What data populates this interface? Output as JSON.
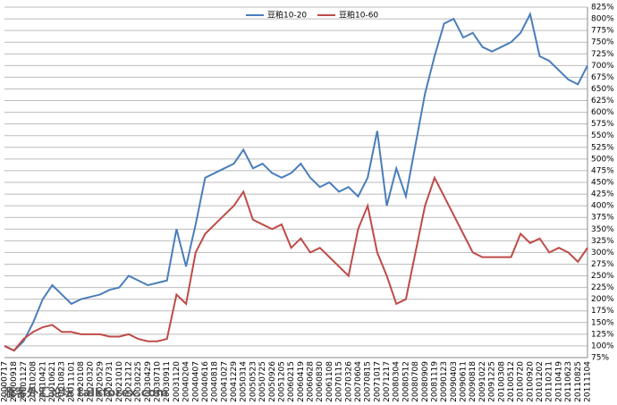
{
  "chart_data": {
    "type": "line",
    "categories": [
      "20000717",
      "20000918",
      "20001127",
      "20010208",
      "20010421",
      "20010621",
      "20010823",
      "20011101",
      "20020108",
      "20020320",
      "20020529",
      "20020731",
      "20021010",
      "20021212",
      "20030225",
      "20030429",
      "20030710",
      "20030911",
      "20031120",
      "20040204",
      "20040407",
      "20040616",
      "20040818",
      "20041027",
      "20041229",
      "20050314",
      "20050523",
      "20050725",
      "20050926",
      "20051205",
      "20060215",
      "20060419",
      "20060628",
      "20060830",
      "20061108",
      "20070115",
      "20070326",
      "20070604",
      "20070815",
      "20071017",
      "20071217",
      "20080304",
      "20080512",
      "20080708",
      "20080909",
      "20081119",
      "20090123",
      "20090403",
      "20090611",
      "20090818",
      "20091022",
      "20091225",
      "20100308",
      "20100512",
      "20100720",
      "20100920",
      "20101202",
      "20110211",
      "20110419",
      "20110623",
      "20110825",
      "20111104"
    ],
    "series": [
      {
        "name": "豆粕10-20",
        "color": "#4a7ebb",
        "values": [
          100,
          90,
          110,
          150,
          200,
          230,
          210,
          190,
          200,
          205,
          210,
          220,
          225,
          250,
          240,
          230,
          235,
          240,
          350,
          270,
          360,
          460,
          470,
          480,
          490,
          520,
          480,
          490,
          470,
          460,
          470,
          490,
          460,
          440,
          450,
          430,
          440,
          420,
          460,
          560,
          400,
          480,
          420,
          530,
          640,
          720,
          790,
          800,
          760,
          770,
          740,
          730,
          740,
          750,
          770,
          810,
          720,
          710,
          690,
          670,
          660,
          700
        ]
      },
      {
        "name": "豆粕10-60",
        "color": "#be4b48",
        "values": [
          100,
          90,
          115,
          130,
          140,
          145,
          130,
          130,
          125,
          125,
          125,
          120,
          120,
          125,
          115,
          110,
          110,
          115,
          210,
          190,
          300,
          340,
          360,
          380,
          400,
          430,
          370,
          360,
          350,
          360,
          310,
          330,
          300,
          310,
          290,
          270,
          250,
          350,
          400,
          300,
          250,
          190,
          200,
          300,
          400,
          460,
          420,
          380,
          340,
          300,
          290,
          290,
          290,
          290,
          340,
          320,
          330,
          300,
          310,
          300,
          280,
          310
        ]
      }
    ],
    "ylim": [
      75,
      825
    ],
    "yticks": [
      {
        "value": 75,
        "label": "75%"
      },
      {
        "value": 100,
        "label": "100%"
      },
      {
        "value": 125,
        "label": "125%"
      },
      {
        "value": 150,
        "label": "150%"
      },
      {
        "value": 175,
        "label": "175%"
      },
      {
        "value": 200,
        "label": "200%"
      },
      {
        "value": 225,
        "label": "225%"
      },
      {
        "value": 250,
        "label": "250%"
      },
      {
        "value": 275,
        "label": "275%"
      },
      {
        "value": 300,
        "label": "300%"
      },
      {
        "value": 325,
        "label": "325%"
      },
      {
        "value": 350,
        "label": "350%"
      },
      {
        "value": 375,
        "label": "375%"
      },
      {
        "value": 400,
        "label": "400%"
      },
      {
        "value": 425,
        "label": "425%"
      },
      {
        "value": 450,
        "label": "450%"
      },
      {
        "value": 475,
        "label": "475%"
      },
      {
        "value": 500,
        "label": "500%"
      },
      {
        "value": 525,
        "label": "525%"
      },
      {
        "value": 550,
        "label": "550%"
      },
      {
        "value": 575,
        "label": "575%"
      },
      {
        "value": 600,
        "label": "600%"
      },
      {
        "value": 625,
        "label": "625%"
      },
      {
        "value": 650,
        "label": "650%"
      },
      {
        "value": 675,
        "label": "675%"
      },
      {
        "value": 700,
        "label": "700%"
      },
      {
        "value": 725,
        "label": "725%"
      },
      {
        "value": 750,
        "label": "750%"
      },
      {
        "value": 775,
        "label": "775%"
      },
      {
        "value": 800,
        "label": "800%"
      },
      {
        "value": 825,
        "label": "825%"
      }
    ],
    "grid": true,
    "legend": "top",
    "watermark": "滙客外汇论坛 talkforex.com"
  }
}
